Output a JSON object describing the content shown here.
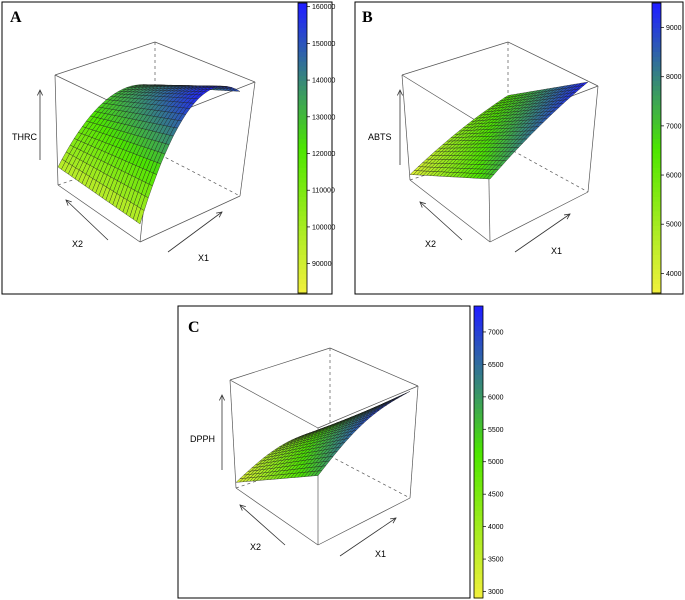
{
  "chart_data": [
    {
      "type": "surface3d",
      "panel": "A",
      "zlabel": "THRC",
      "xlabel": "X1",
      "ylabel": "X2",
      "colorbar": {
        "ticks": [
          90000,
          100000,
          110000,
          120000,
          130000,
          140000,
          150000,
          160000
        ],
        "range": [
          82000,
          161000
        ]
      },
      "colors": {
        "low": "#f0f03c",
        "mid": "#4ce600",
        "high": "#2020ff"
      }
    },
    {
      "type": "surface3d",
      "panel": "B",
      "zlabel": "ABTS",
      "xlabel": "X1",
      "ylabel": "X2",
      "colorbar": {
        "ticks": [
          4000,
          5000,
          6000,
          7000,
          8000,
          9000
        ],
        "range": [
          3600,
          9500
        ]
      },
      "colors": {
        "low": "#f0f03c",
        "mid": "#4ce600",
        "high": "#2020ff"
      }
    },
    {
      "type": "surface3d",
      "panel": "C",
      "zlabel": "DPPH",
      "xlabel": "X1",
      "ylabel": "X2",
      "colorbar": {
        "ticks": [
          3000,
          3500,
          4000,
          4500,
          5000,
          5500,
          6000,
          6500,
          7000
        ],
        "range": [
          2900,
          7400
        ]
      },
      "colors": {
        "low": "#f0f03c",
        "mid": "#4ce600",
        "high": "#2020ff"
      }
    }
  ]
}
